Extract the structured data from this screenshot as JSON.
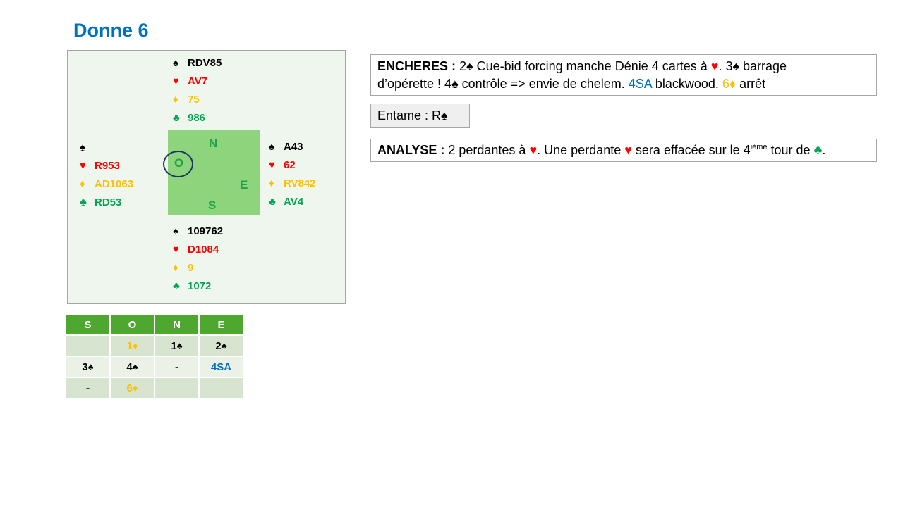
{
  "page": {
    "title": "Donne 6"
  },
  "colors": {
    "title_blue": "#0070C0",
    "heart_red": "#FF0000",
    "diamond_gold": "#FFC000",
    "club_green": "#00A550",
    "spade_black": "#000000",
    "diagram_bg": "#EFF6ED",
    "center_square_green": "#8ED47D",
    "compass_letter_green": "#1FA34A",
    "dealer_circle_navy": "#17375E",
    "table_header_green": "#4EA72E",
    "table_row_dark": "#D7E4CF",
    "table_row_light": "#EBF1E6",
    "bid_blue": "#0070C0",
    "border_gray": "#A6A6A6",
    "entame_bg": "#EFEFEF"
  },
  "suits": {
    "spade": "♠",
    "heart": "♥",
    "diamond": "♦",
    "club": "♣"
  },
  "deal": {
    "north": {
      "spades": "RDV85",
      "hearts": "AV7",
      "diamonds": "75",
      "clubs": "986"
    },
    "west": {
      "spades": "",
      "hearts": "R953",
      "diamonds": "AD1063",
      "clubs": "RD53"
    },
    "east": {
      "spades": "A43",
      "hearts": "62",
      "diamonds": "RV842",
      "clubs": "AV4"
    },
    "south": {
      "spades": "109762",
      "hearts": "D1084",
      "diamonds": "9",
      "clubs": "1072"
    },
    "compass": {
      "north": "N",
      "west": "O",
      "east": "E",
      "south": "S"
    },
    "dealer": "O"
  },
  "bidding": {
    "headers": [
      "S",
      "O",
      "N",
      "E"
    ],
    "rows": [
      {
        "cells": [
          {
            "text": "",
            "cls": "plain"
          },
          {
            "text": "1♦",
            "cls": "gold"
          },
          {
            "text": "1♠",
            "cls": "plain"
          },
          {
            "text": "2♠",
            "cls": "plain"
          }
        ]
      },
      {
        "cells": [
          {
            "text": "3♠",
            "cls": "plain"
          },
          {
            "text": "4♠",
            "cls": "plain"
          },
          {
            "text": "-",
            "cls": "plain"
          },
          {
            "text": "4SA",
            "cls": "blue"
          }
        ]
      },
      {
        "cells": [
          {
            "text": "-",
            "cls": "plain"
          },
          {
            "text": "6♦",
            "cls": "gold"
          },
          {
            "text": "",
            "cls": "plain"
          },
          {
            "text": "",
            "cls": "plain"
          }
        ]
      }
    ]
  },
  "encheres": {
    "label": "ENCHERES :",
    "line1": {
      "a": " 2♠ Cue-bid forcing manche Dénie 4 cartes à ",
      "heart": "♥",
      "b": ". 3♠ barrage"
    },
    "line2": {
      "a": "d’opérette ! 4♠ contrôle => envie de chelem. ",
      "sa": "4SA",
      "b": " blackwood. ",
      "diamond": "6♦",
      "c": " arrêt"
    }
  },
  "entame": {
    "text": "Entame : R♠"
  },
  "analyse": {
    "label": "ANALYSE :",
    "a": " 2 perdantes à ",
    "h1": "♥",
    "b": ". Une perdante ",
    "h2": "♥",
    "c": " sera effacée sur le 4",
    "sup": "ième",
    "d": " tour de ",
    "club": "♣",
    "e": "."
  }
}
